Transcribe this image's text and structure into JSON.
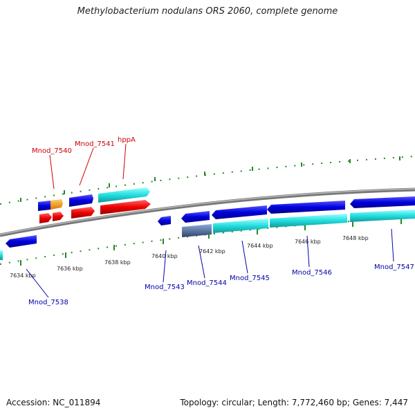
{
  "title": "Methylobacterium nodulans ORS 2060, complete genome",
  "accession": "Accession: NC_011894",
  "stats": "Topology: circular; Length: 7,772,460 bp; Genes: 7,447",
  "ticks": [
    "7634 kbp",
    "7636 kbp",
    "7638 kbp",
    "7640 kbp",
    "7642 kbp",
    "7644 kbp",
    "7646 kbp",
    "7648 kbp"
  ],
  "genes_top": [
    "Mnod_7540",
    "Mnod_7541",
    "hppA"
  ],
  "genes_bottom": [
    "Mnod_7538",
    "Mnod_7543",
    "Mnod_7544",
    "Mnod_7545",
    "Mnod_7546",
    "Mnod_7547"
  ],
  "colors": {
    "blue": "#0000dd",
    "cyan": "#33dddd",
    "red": "#ee0000",
    "orange": "#ff9900",
    "steel": "#5577aa",
    "tick": "#228822",
    "backbone": "#888888"
  }
}
